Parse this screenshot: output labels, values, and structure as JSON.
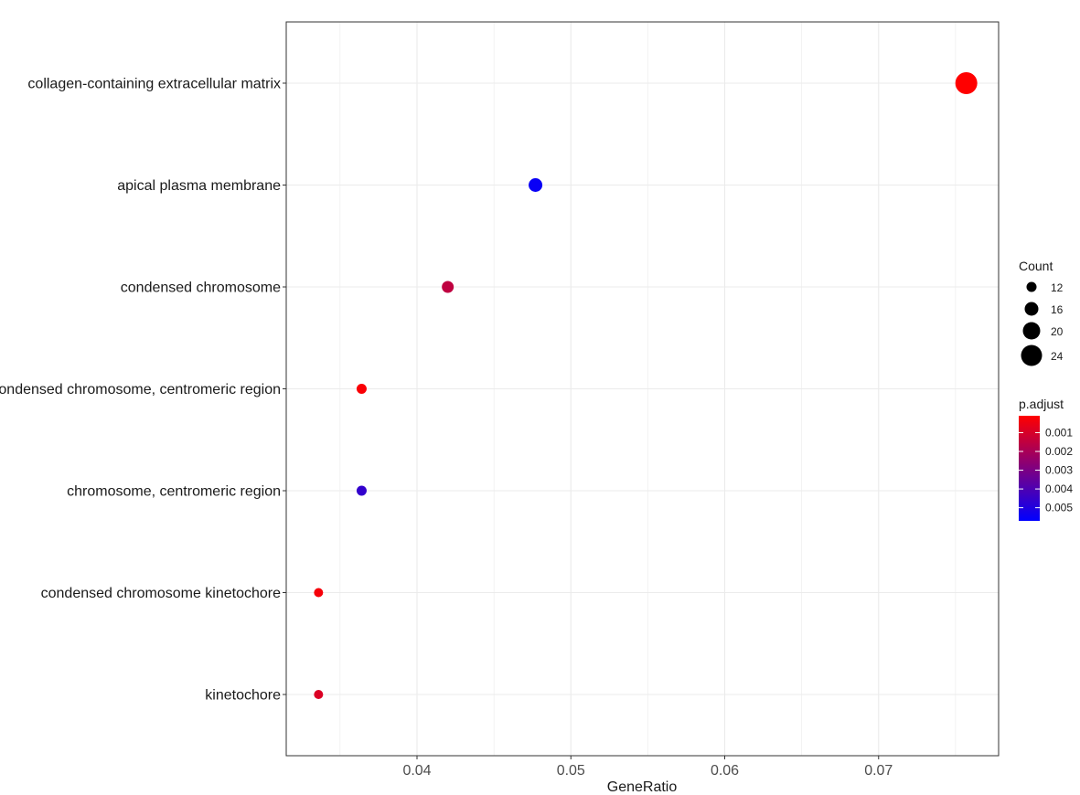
{
  "chart_data": {
    "type": "scatter",
    "title": "",
    "xlabel": "GeneRatio",
    "ylabel": "",
    "xlim": [
      0.0315,
      0.0778
    ],
    "x_ticks": [
      "0.04",
      "0.05",
      "0.06",
      "0.07"
    ],
    "x_tick_values": [
      0.04,
      0.05,
      0.06,
      0.07
    ],
    "grid": true,
    "categories": [
      "collagen-containing extracellular matrix",
      "apical plasma membrane",
      "condensed chromosome",
      "condensed chromosome, centromeric region",
      "chromosome, centromeric region",
      "condensed chromosome kinetochore",
      "kinetochore"
    ],
    "points": [
      {
        "category": "collagen-containing extracellular matrix",
        "x": 0.0757,
        "count": 25,
        "p_adjust": 0.0001
      },
      {
        "category": "apical plasma membrane",
        "x": 0.0477,
        "count": 16,
        "p_adjust": 0.0055
      },
      {
        "category": "condensed chromosome",
        "x": 0.042,
        "count": 14,
        "p_adjust": 0.0015
      },
      {
        "category": "condensed chromosome, centromeric region",
        "x": 0.0364,
        "count": 12,
        "p_adjust": 0.0002
      },
      {
        "category": "chromosome, centromeric region",
        "x": 0.0364,
        "count": 12,
        "p_adjust": 0.0046
      },
      {
        "category": "condensed chromosome kinetochore",
        "x": 0.0336,
        "count": 11,
        "p_adjust": 0.0003
      },
      {
        "category": "kinetochore",
        "x": 0.0336,
        "count": 11,
        "p_adjust": 0.0009
      }
    ],
    "legend": {
      "placement": "right",
      "size": {
        "title": "Count",
        "labels": [
          "12",
          "16",
          "20",
          "24"
        ],
        "values": [
          12,
          16,
          20,
          24
        ]
      },
      "color": {
        "title": "p.adjust",
        "labels": [
          "0.001",
          "0.002",
          "0.003",
          "0.004",
          "0.005"
        ],
        "values": [
          0.001,
          0.002,
          0.003,
          0.004,
          0.005
        ],
        "range": [
          0.0001,
          0.0057
        ],
        "low_color": "#ff0000",
        "high_color": "#0000ff"
      }
    },
    "colors": {
      "panel_border": "#333333",
      "gridline": "#ebebeb",
      "point_size_legend": "#000000"
    }
  }
}
